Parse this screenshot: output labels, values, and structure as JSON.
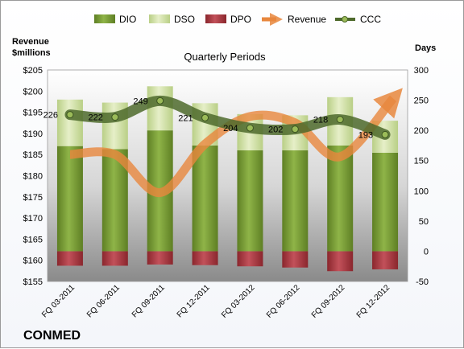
{
  "chart_data": {
    "type": "bar",
    "title": "Quarterly Periods",
    "company": "CONMED",
    "left_axis_title_line1": "Revenue",
    "left_axis_title_line2": "$millions",
    "right_axis_title": "Days",
    "categories": [
      "FQ 03-2011",
      "FQ 06-2011",
      "FQ 09-2011",
      "FQ 12-2011",
      "FQ 03-2012",
      "FQ 06-2012",
      "FQ 09-2012",
      "FQ 12-2012"
    ],
    "left_ylim": [
      155,
      205
    ],
    "left_ticks": [
      "$155",
      "$160",
      "$165",
      "$170",
      "$175",
      "$180",
      "$185",
      "$190",
      "$195",
      "$200",
      "$205"
    ],
    "right_ylim": [
      -50,
      300
    ],
    "right_ticks": [
      "-50",
      "0",
      "50",
      "100",
      "150",
      "200",
      "250",
      "300"
    ],
    "legend_position": "top",
    "series": [
      {
        "name": "DIO",
        "axis": "right",
        "color": "#7fa43a",
        "values": [
          174,
          169,
          200,
          175,
          167,
          167,
          175,
          163
        ]
      },
      {
        "name": "DSO",
        "axis": "right",
        "color": "#d8e6b0",
        "values": [
          77,
          77,
          73,
          70,
          60,
          58,
          80,
          53
        ]
      },
      {
        "name": "DPO",
        "axis": "right",
        "color": "#a8333a",
        "values": [
          -24,
          -24,
          -22,
          -23,
          -25,
          -27,
          -33,
          -30
        ]
      },
      {
        "name": "Revenue",
        "axis": "left",
        "color": "#e8873d",
        "values": [
          185,
          185,
          176,
          187.5,
          194,
          192.5,
          184.5,
          197.5
        ]
      },
      {
        "name": "CCC",
        "axis": "right",
        "color": "#4e6a2c",
        "values": [
          226,
          222,
          249,
          221,
          204,
          202,
          218,
          193
        ]
      }
    ],
    "ccc_labels": [
      "226",
      "222",
      "249",
      "221",
      "204",
      "202",
      "218",
      "193"
    ]
  }
}
